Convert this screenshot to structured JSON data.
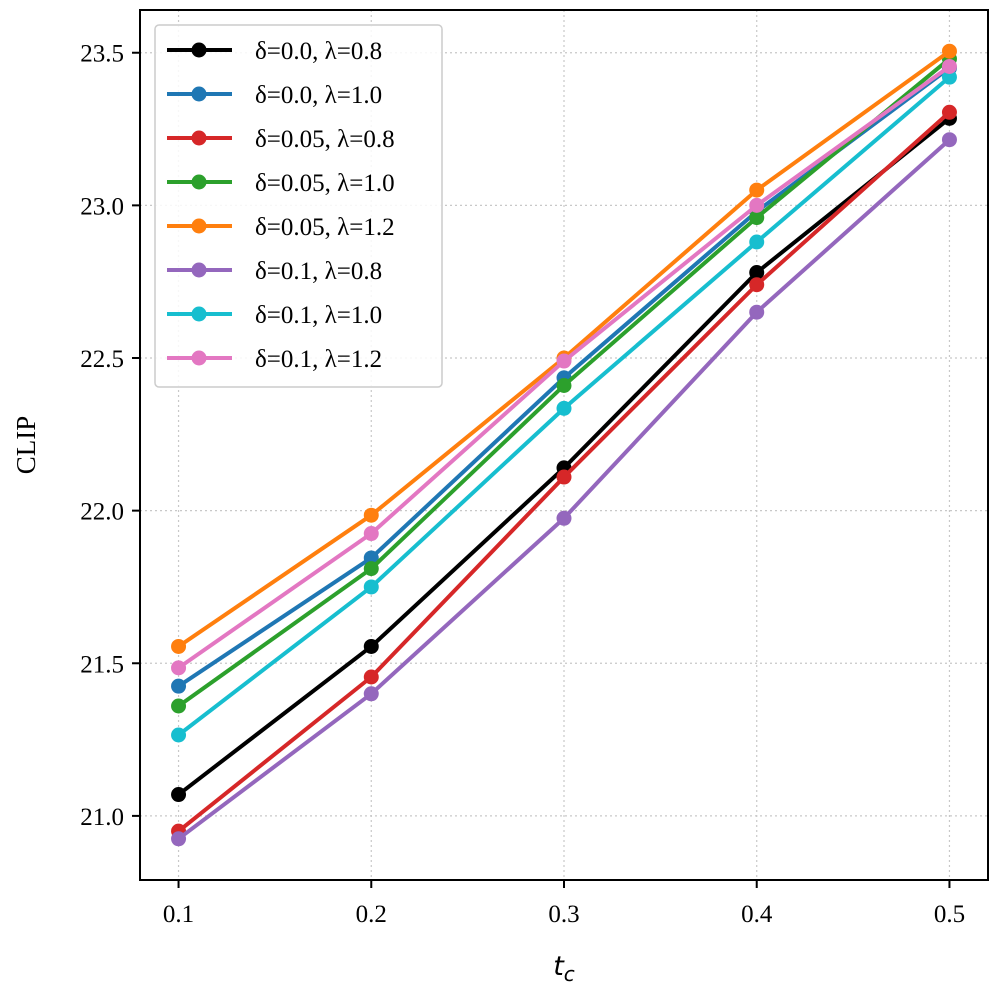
{
  "chart_data": {
    "type": "line",
    "title": "",
    "xlabel_base": "t",
    "xlabel_sub": "c",
    "ylabel": "CLIP",
    "x": [
      0.1,
      0.2,
      0.3,
      0.4,
      0.5
    ],
    "xticks": [
      "0.1",
      "0.2",
      "0.3",
      "0.4",
      "0.5"
    ],
    "yticks": [
      "21.0",
      "21.5",
      "22.0",
      "22.5",
      "23.0",
      "23.5"
    ],
    "ytick_values": [
      21.0,
      21.5,
      22.0,
      22.5,
      23.0,
      23.5
    ],
    "xlim": [
      0.08,
      0.52
    ],
    "ylim": [
      20.79,
      23.64
    ],
    "grid": true,
    "legend_position": "upper-left",
    "series": [
      {
        "name": "δ=0.0, λ=0.8",
        "color": "#000000",
        "values": [
          21.07,
          21.555,
          22.14,
          22.78,
          23.285
        ]
      },
      {
        "name": "δ=0.0, λ=1.0",
        "color": "#1f77b4",
        "values": [
          21.425,
          21.845,
          22.435,
          22.98,
          23.45
        ]
      },
      {
        "name": "δ=0.05, λ=0.8",
        "color": "#d62728",
        "values": [
          20.95,
          21.455,
          22.11,
          22.74,
          23.305
        ]
      },
      {
        "name": "δ=0.05, λ=1.0",
        "color": "#2ca02c",
        "values": [
          21.36,
          21.81,
          22.41,
          22.96,
          23.48
        ]
      },
      {
        "name": "δ=0.05, λ=1.2",
        "color": "#ff7f0e",
        "values": [
          21.555,
          21.985,
          22.5,
          23.05,
          23.505
        ]
      },
      {
        "name": "δ=0.1, λ=0.8",
        "color": "#9467bd",
        "values": [
          20.925,
          21.4,
          21.975,
          22.65,
          23.215
        ]
      },
      {
        "name": "δ=0.1, λ=1.0",
        "color": "#17becf",
        "values": [
          21.265,
          21.75,
          22.335,
          22.88,
          23.42
        ]
      },
      {
        "name": "δ=0.1, λ=1.2",
        "color": "#e377c2",
        "values": [
          21.485,
          21.925,
          22.49,
          23.0,
          23.455
        ]
      }
    ]
  }
}
